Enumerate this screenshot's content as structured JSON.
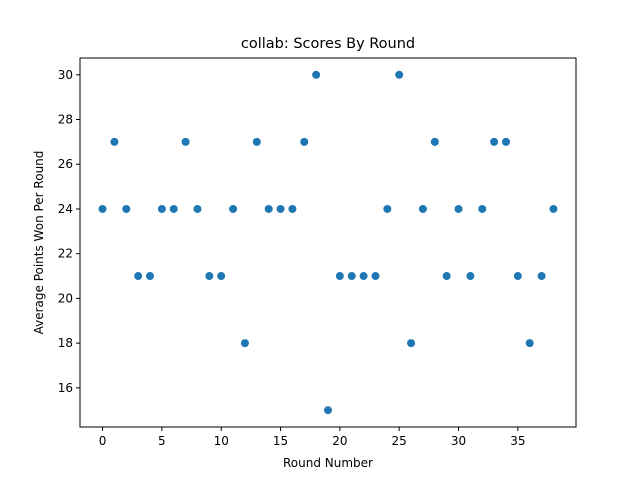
{
  "chart_data": {
    "type": "scatter",
    "title": "collab: Scores By Round",
    "xlabel": "Round Number",
    "ylabel": "Average Points Won Per Round",
    "xlim": [
      -1.9,
      39.9
    ],
    "ylim": [
      14.25,
      30.75
    ],
    "xticks": [
      0,
      5,
      10,
      15,
      20,
      25,
      30,
      35
    ],
    "yticks": [
      16,
      18,
      20,
      22,
      24,
      26,
      28,
      30
    ],
    "grid": false,
    "marker_color": "#1f77b4",
    "x": [
      0,
      1,
      2,
      3,
      4,
      5,
      6,
      7,
      8,
      9,
      10,
      11,
      12,
      13,
      14,
      15,
      16,
      17,
      18,
      19,
      20,
      21,
      22,
      23,
      24,
      25,
      26,
      27,
      28,
      29,
      30,
      31,
      32,
      33,
      34,
      35,
      36,
      37,
      38
    ],
    "y": [
      24,
      27,
      24,
      21,
      21,
      24,
      24,
      27,
      24,
      21,
      21,
      24,
      18,
      27,
      24,
      24,
      24,
      27,
      30,
      15,
      21,
      21,
      21,
      21,
      24,
      30,
      18,
      24,
      27,
      21,
      24,
      21,
      24,
      27,
      27,
      21,
      18,
      21,
      24
    ]
  }
}
